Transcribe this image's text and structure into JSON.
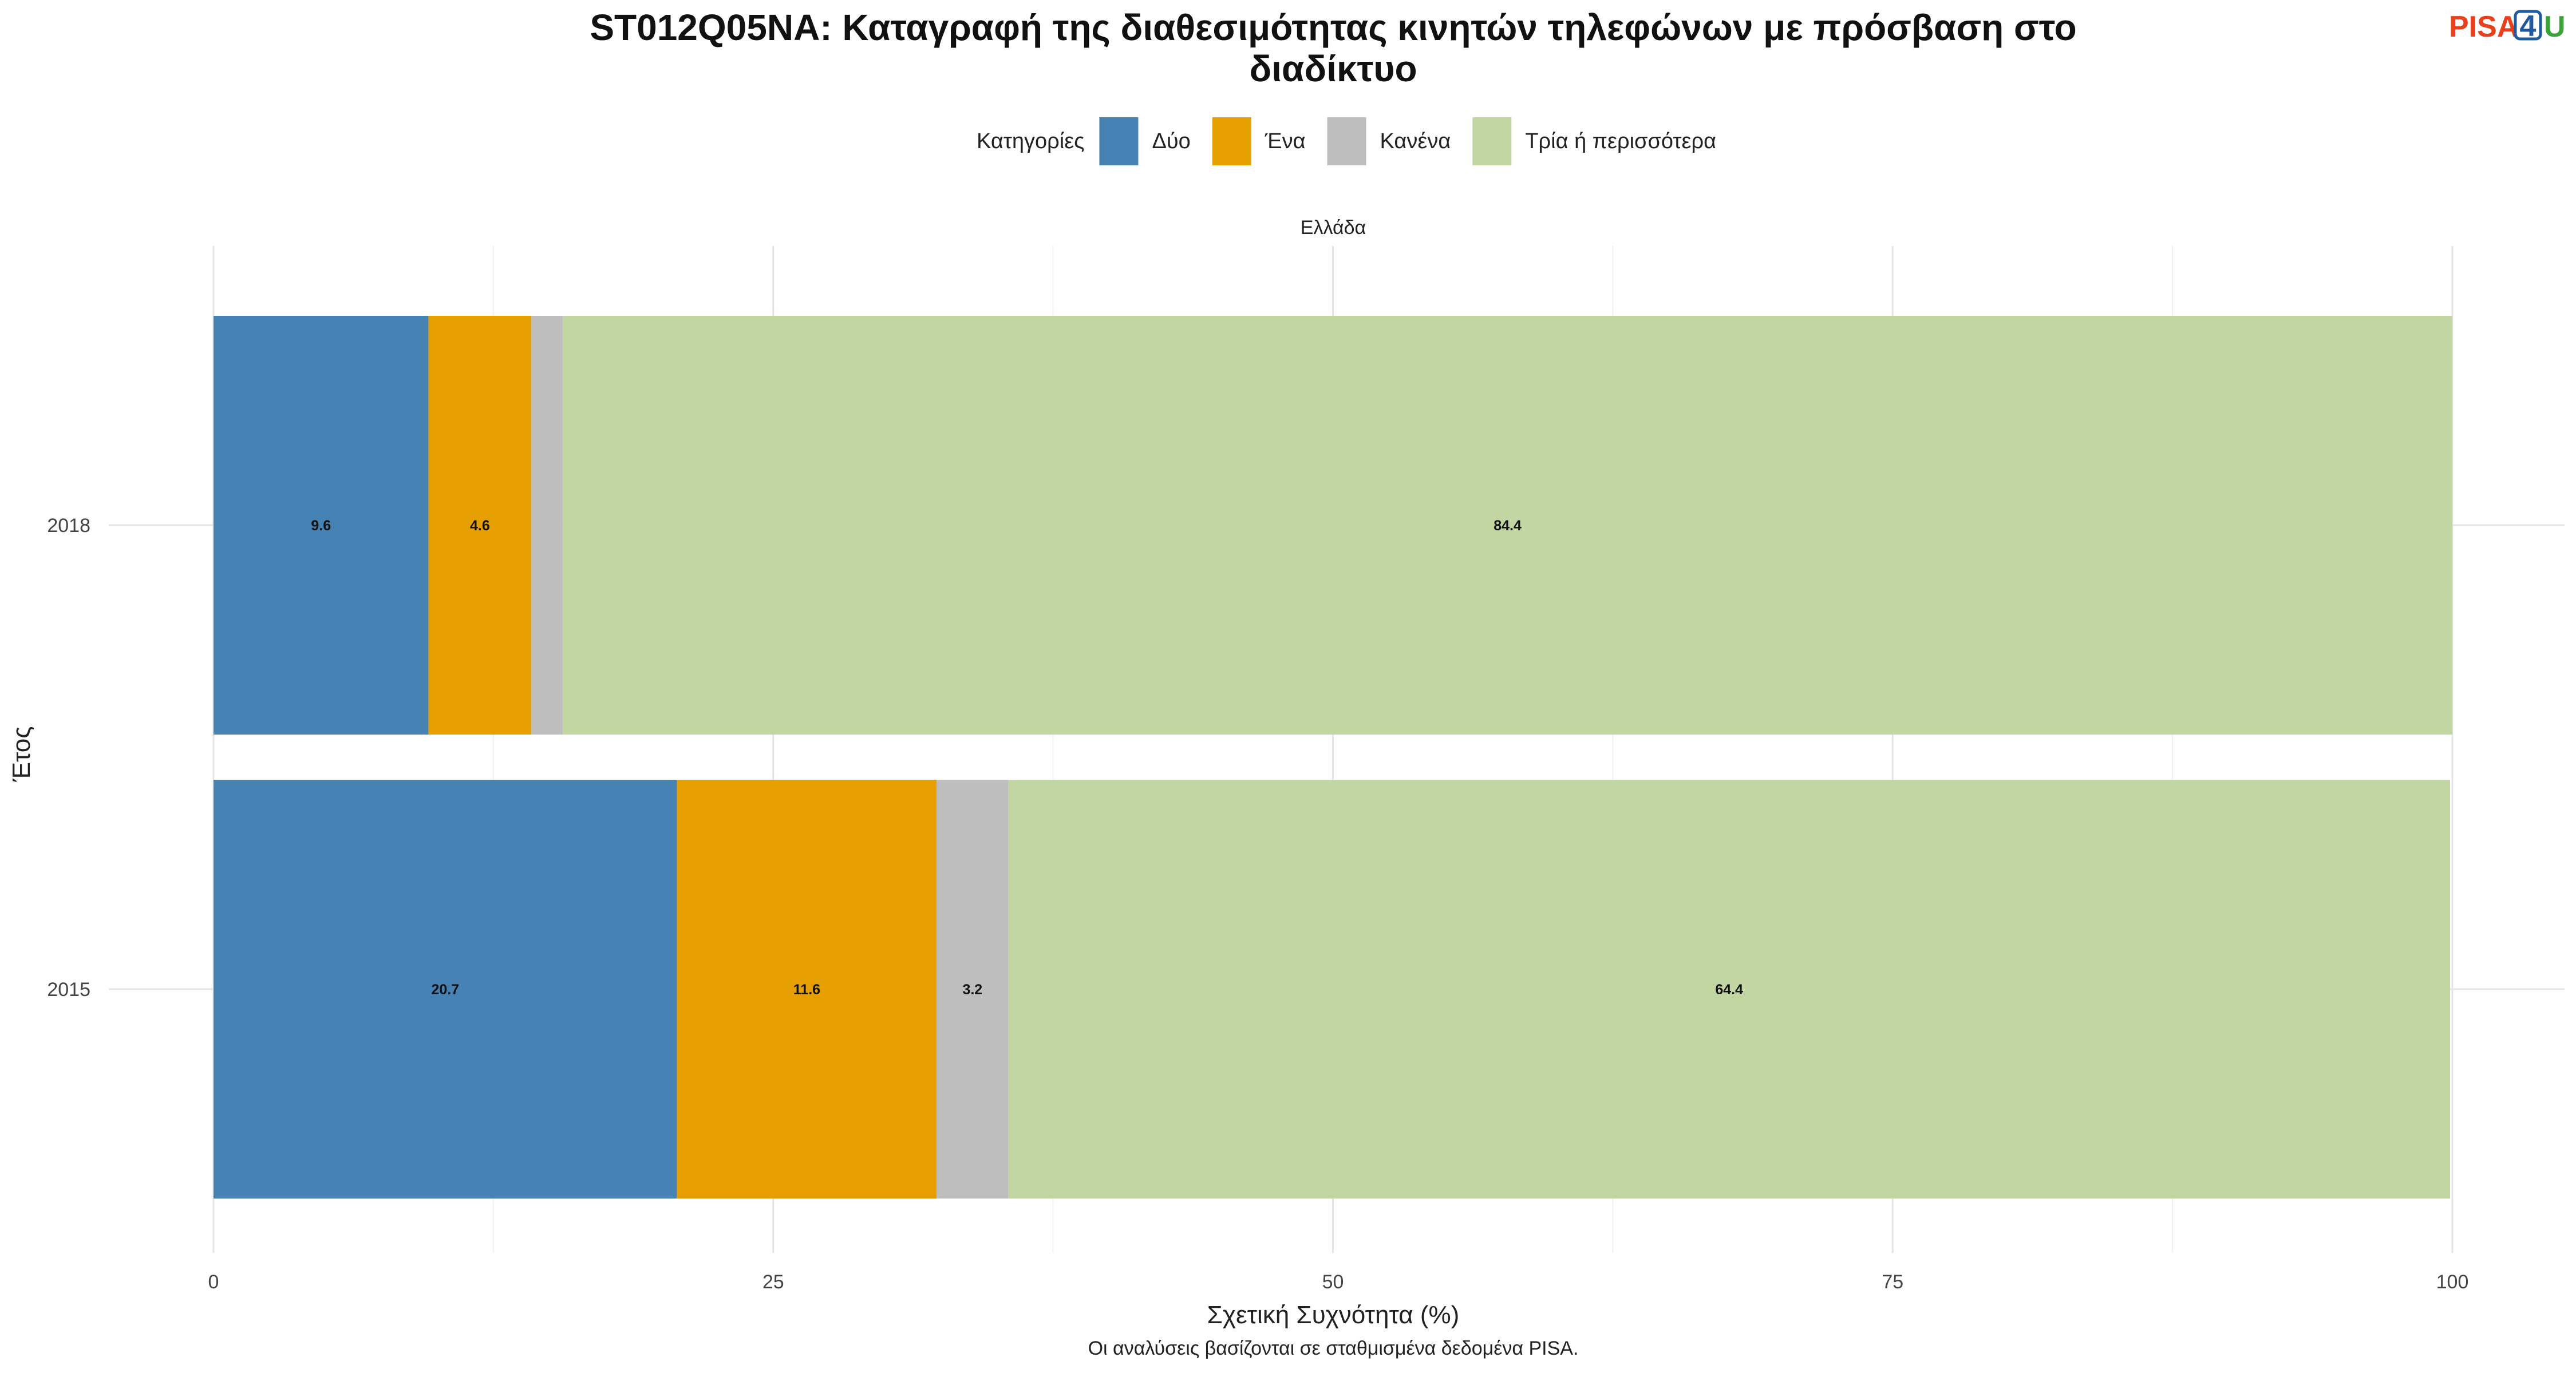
{
  "title_line1": "ST012Q05NA: Καταγραφή της διαθεσιμότητας κινητών τηλεφώνων με πρόσβαση στο",
  "title_line2": "διαδίκτυο",
  "logo": {
    "part1": "PISA",
    "part2": "4",
    "part3": "U",
    "color1": "#e8401c",
    "color2": "#1f5a9e",
    "color3": "#3aa335"
  },
  "legend_title": "Κατηγορίες",
  "facet_label": "Ελλάδα",
  "caption": "Οι αναλύσεις βασίζονται σε σταθμισμένα δεδομένα PISA.",
  "chart_data": {
    "type": "bar",
    "orientation": "horizontal",
    "stacked": true,
    "categories": [
      "2018",
      "2015"
    ],
    "xlabel": "Σχετική Συχνότητα (%)",
    "ylabel": "Έτος",
    "xlim": [
      0,
      100
    ],
    "xticks": [
      0,
      25,
      50,
      75,
      100
    ],
    "grid": true,
    "legend_position": "top",
    "series": [
      {
        "name": "Δύο",
        "color": "#4682b4",
        "values": [
          9.6,
          20.7
        ],
        "labels": [
          "9.6",
          "20.7"
        ]
      },
      {
        "name": "Ένα",
        "color": "#e69f00",
        "values": [
          4.6,
          11.6
        ],
        "labels": [
          "4.6",
          "11.6"
        ]
      },
      {
        "name": "Κανένα",
        "color": "#bebebe",
        "values": [
          1.4,
          3.2
        ],
        "labels": [
          "",
          "3.2"
        ]
      },
      {
        "name": "Τρία ή περισσότερα",
        "color": "#c2d6a4",
        "values": [
          84.4,
          64.4
        ],
        "labels": [
          "84.4",
          "64.4"
        ]
      }
    ]
  }
}
